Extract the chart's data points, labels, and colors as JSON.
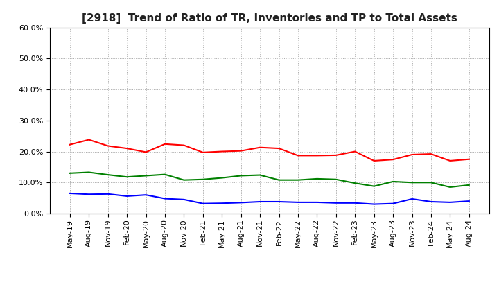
{
  "title": "[2918]  Trend of Ratio of TR, Inventories and TP to Total Assets",
  "xlabels": [
    "May-19",
    "Aug-19",
    "Nov-19",
    "Feb-20",
    "May-20",
    "Aug-20",
    "Nov-20",
    "Feb-21",
    "May-21",
    "Aug-21",
    "Nov-21",
    "Feb-22",
    "May-22",
    "Aug-22",
    "Nov-22",
    "Feb-23",
    "May-23",
    "Aug-23",
    "Nov-23",
    "Feb-24",
    "May-24",
    "Aug-24"
  ],
  "trade_receivables": [
    0.222,
    0.238,
    0.218,
    0.21,
    0.198,
    0.224,
    0.22,
    0.197,
    0.2,
    0.202,
    0.213,
    0.21,
    0.187,
    0.187,
    0.188,
    0.2,
    0.17,
    0.174,
    0.19,
    0.192,
    0.17,
    0.175
  ],
  "inventories": [
    0.065,
    0.062,
    0.063,
    0.056,
    0.06,
    0.048,
    0.045,
    0.032,
    0.033,
    0.035,
    0.038,
    0.038,
    0.036,
    0.036,
    0.034,
    0.034,
    0.03,
    0.032,
    0.047,
    0.038,
    0.036,
    0.04
  ],
  "trade_payables": [
    0.13,
    0.133,
    0.125,
    0.118,
    0.122,
    0.126,
    0.108,
    0.11,
    0.115,
    0.122,
    0.124,
    0.108,
    0.108,
    0.112,
    0.11,
    0.098,
    0.088,
    0.103,
    0.1,
    0.1,
    0.085,
    0.092
  ],
  "color_tr": "#FF0000",
  "color_inv": "#0000FF",
  "color_tp": "#008000",
  "ylim": [
    0.0,
    0.6
  ],
  "yticks": [
    0.0,
    0.1,
    0.2,
    0.3,
    0.4,
    0.5,
    0.6
  ],
  "background_color": "#FFFFFF",
  "grid_color": "#AAAAAA",
  "title_fontsize": 11,
  "legend_fontsize": 9,
  "tick_fontsize": 8
}
